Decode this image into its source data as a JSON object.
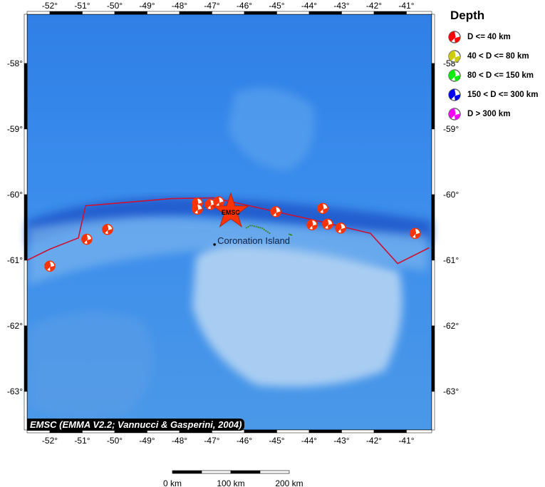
{
  "legend": {
    "title": "Depth",
    "items": [
      {
        "label": "D <= 40 km",
        "color": "#ff0000"
      },
      {
        "label": "40 < D <= 80 km",
        "color": "#cccc00"
      },
      {
        "label": "80 < D <= 150 km",
        "color": "#00ee00"
      },
      {
        "label": "150 < D <= 300 km",
        "color": "#0000ee"
      },
      {
        "label": "D > 300 km",
        "color": "#ff00ff"
      }
    ]
  },
  "map": {
    "lon_range": [
      -52.7,
      -40.3
    ],
    "lat_range": [
      -63.6,
      -57.3
    ],
    "lon_ticks": [
      "-52°",
      "-51°",
      "-50°",
      "-49°",
      "-48°",
      "-47°",
      "-46°",
      "-45°",
      "-44°",
      "-43°",
      "-42°",
      "-41°"
    ],
    "lat_ticks": [
      "-58°",
      "-59°",
      "-60°",
      "-61°",
      "-62°",
      "-63°"
    ],
    "events": [
      {
        "lon": -52.0,
        "lat": -61.09
      },
      {
        "lon": -50.86,
        "lat": -60.68
      },
      {
        "lon": -50.22,
        "lat": -60.53
      },
      {
        "lon": -47.45,
        "lat": -60.13
      },
      {
        "lon": -47.45,
        "lat": -60.22
      },
      {
        "lon": -47.05,
        "lat": -60.15
      },
      {
        "lon": -46.79,
        "lat": -60.11
      },
      {
        "lon": -45.03,
        "lat": -60.26
      },
      {
        "lon": -43.91,
        "lat": -60.46
      },
      {
        "lon": -43.58,
        "lat": -60.21
      },
      {
        "lon": -43.43,
        "lat": -60.45
      },
      {
        "lon": -43.03,
        "lat": -60.51
      },
      {
        "lon": -40.73,
        "lat": -60.59
      }
    ],
    "event_color": "#ff3300",
    "epicenter": {
      "lon": -46.42,
      "lat": -60.26,
      "label": "EMSC",
      "color": "#ff3300"
    },
    "place": {
      "lon": -46.92,
      "lat": -60.76,
      "label": "Coronation Island"
    },
    "plate_boundary_color": "#cc1133",
    "plate_boundary": [
      [
        -52.7,
        -61.0
      ],
      [
        -52.0,
        -60.83
      ],
      [
        -51.12,
        -60.66
      ],
      [
        -50.9,
        -60.17
      ],
      [
        -48.26,
        -60.06
      ],
      [
        -46.94,
        -60.05
      ],
      [
        -43.65,
        -60.41
      ],
      [
        -42.11,
        -60.59
      ],
      [
        -41.27,
        -61.05
      ],
      [
        -40.3,
        -60.81
      ]
    ]
  },
  "scale_bar": {
    "labels": [
      "0 km",
      "100 km",
      "200 km"
    ]
  },
  "credit": "EMSC (EMMA V2.2; Vannucci & Gasperini, 2004)"
}
